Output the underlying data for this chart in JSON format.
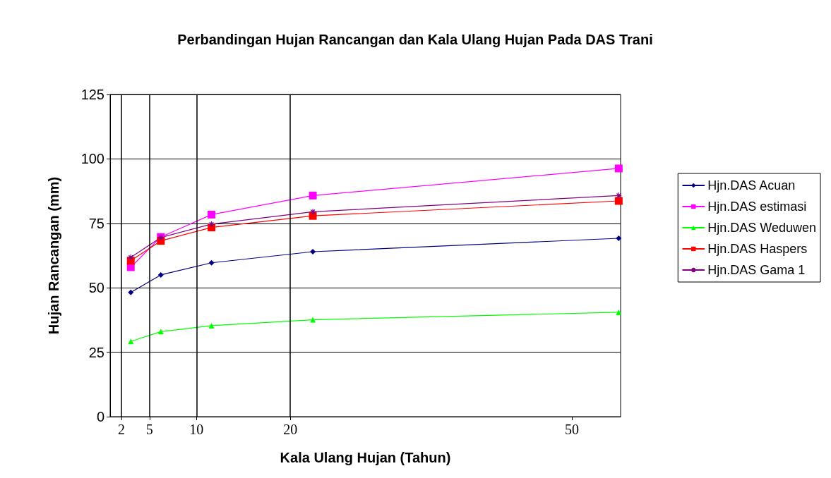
{
  "chart_data": {
    "type": "line",
    "title": "Perbandingan Hujan Rancangan dan Kala Ulang Hujan Pada DAS Trani",
    "xlabel": "Kala Ulang Hujan (Tahun)",
    "ylabel": "Hujan Rancangan (mm)",
    "x": [
      3,
      6.2,
      11.6,
      22.4,
      55
    ],
    "xlim": [
      0.8,
      55.2
    ],
    "xticks": [
      2,
      5,
      10,
      20,
      50
    ],
    "ylim": [
      0,
      125
    ],
    "yticks": [
      0,
      25,
      50,
      75,
      100,
      125
    ],
    "grid": "y",
    "legend": "right",
    "ref_lines": [
      {
        "axis": "x",
        "value": 2
      },
      {
        "axis": "x",
        "value": 5
      },
      {
        "axis": "x",
        "value": 10
      },
      {
        "axis": "x",
        "value": 20
      }
    ],
    "series": [
      {
        "name": "Hjn.DAS Acuan",
        "color": "#000080",
        "marker": "diamond",
        "values": [
          48.2,
          55,
          59.7,
          64,
          69.2
        ]
      },
      {
        "name": "Hjn.DAS estimasi",
        "color": "#ff00ff",
        "marker": "square",
        "values": [
          58,
          69.7,
          78.4,
          85.8,
          96.3
        ]
      },
      {
        "name": "Hjn.DAS Weduwen",
        "color": "#00ff00",
        "marker": "triangle",
        "values": [
          29.2,
          33,
          35.3,
          37.6,
          40.5
        ]
      },
      {
        "name": "Hjn.DAS Haspers",
        "color": "#ff0000",
        "marker": "square",
        "values": [
          60.5,
          68.2,
          73.4,
          77.9,
          83.7
        ]
      },
      {
        "name": "Hjn.DAS Gama 1",
        "color": "#800080",
        "marker": "cross",
        "values": [
          61.8,
          69.5,
          74.7,
          79.5,
          85.8
        ]
      }
    ]
  }
}
